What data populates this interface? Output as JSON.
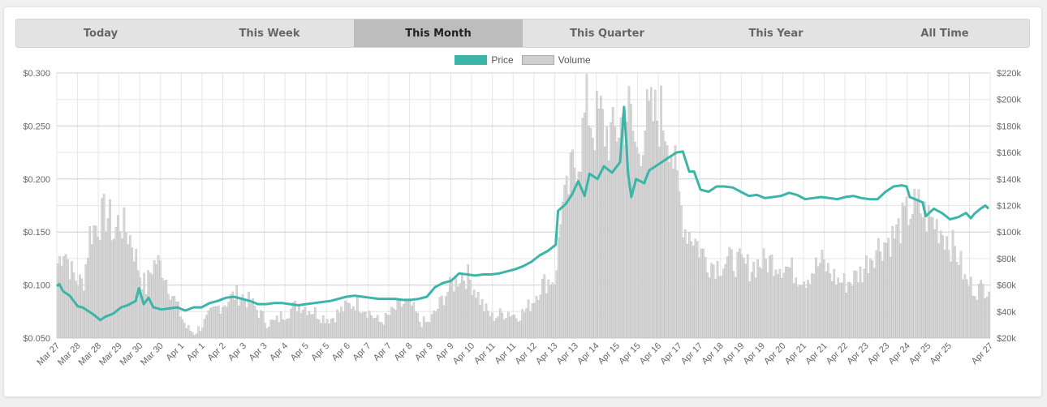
{
  "tabs": [
    {
      "label": "Today",
      "active": false
    },
    {
      "label": "This Week",
      "active": false
    },
    {
      "label": "This Month",
      "active": true
    },
    {
      "label": "This Quarter",
      "active": false
    },
    {
      "label": "This Year",
      "active": false
    },
    {
      "label": "All Time",
      "active": false
    }
  ],
  "legend": {
    "price_label": "Price",
    "volume_label": "Volume"
  },
  "colors": {
    "price": "#3cb5a9",
    "volume_fill": "#d0d0d0",
    "volume_stroke": "#aaaaaa",
    "active_tab": "#bdbdbd",
    "tabs_bg": "#e3e3e3"
  },
  "chart_data": {
    "type": "line",
    "grid": true,
    "legend_position": "top-center",
    "x_labels": [
      "Mar 27",
      "Mar 28",
      "Mar 28",
      "Mar 29",
      "Mar 30",
      "Mar 30",
      "Apr 1",
      "Apr 1",
      "Apr 2",
      "Apr 3",
      "Apr 3",
      "Apr 4",
      "Apr 5",
      "Apr 5",
      "Apr 6",
      "Apr 7",
      "Apr 7",
      "Apr 8",
      "Apr 9",
      "Apr 9",
      "Apr 10",
      "Apr 11",
      "Apr 11",
      "Apr 12",
      "Apr 13",
      "Apr 13",
      "Apr 14",
      "Apr 15",
      "Apr 15",
      "Apr 16",
      "Apr 17",
      "Apr 17",
      "Apr 18",
      "Apr 19",
      "Apr 19",
      "Apr 20",
      "Apr 21",
      "Apr 21",
      "Apr 22",
      "Apr 23",
      "Apr 23",
      "Apr 24",
      "Apr 25",
      "Apr 25",
      "",
      "Apr 27"
    ],
    "y_left": {
      "ticks": [
        "$0.050",
        "$0.100",
        "$0.150",
        "$0.200",
        "$0.250",
        "$0.300"
      ],
      "range": [
        0.05,
        0.3
      ]
    },
    "y_right": {
      "ticks": [
        "$20k",
        "$40k",
        "$60k",
        "$80k",
        "$100k",
        "$120k",
        "$140k",
        "$160k",
        "$180k",
        "$200k",
        "$220k"
      ],
      "range": [
        20000,
        220000
      ]
    },
    "series": [
      {
        "name": "Price",
        "axis": "left",
        "points": [
          [
            0,
            0.099
          ],
          [
            0.15,
            0.101
          ],
          [
            0.4,
            0.094
          ],
          [
            0.8,
            0.09
          ],
          [
            1.0,
            0.086
          ],
          [
            1.3,
            0.08
          ],
          [
            1.6,
            0.079
          ],
          [
            2.0,
            0.075
          ],
          [
            2.3,
            0.072
          ],
          [
            2.7,
            0.067
          ],
          [
            3.0,
            0.07
          ],
          [
            3.5,
            0.073
          ],
          [
            4.0,
            0.079
          ],
          [
            4.4,
            0.081
          ],
          [
            4.9,
            0.085
          ],
          [
            5.1,
            0.097
          ],
          [
            5.4,
            0.082
          ],
          [
            5.7,
            0.088
          ],
          [
            6.0,
            0.079
          ],
          [
            6.5,
            0.077
          ],
          [
            7.0,
            0.078
          ],
          [
            7.5,
            0.079
          ],
          [
            7.8,
            0.077
          ],
          [
            8.0,
            0.076
          ],
          [
            8.5,
            0.079
          ],
          [
            9.0,
            0.079
          ],
          [
            9.5,
            0.083
          ],
          [
            10.0,
            0.085
          ],
          [
            10.5,
            0.088
          ],
          [
            11.0,
            0.089
          ],
          [
            11.5,
            0.087
          ],
          [
            12.0,
            0.085
          ],
          [
            12.5,
            0.082
          ],
          [
            13.0,
            0.082
          ],
          [
            13.5,
            0.083
          ],
          [
            14.0,
            0.083
          ],
          [
            14.5,
            0.082
          ],
          [
            15.0,
            0.081
          ],
          [
            15.5,
            0.082
          ],
          [
            16.0,
            0.083
          ],
          [
            16.5,
            0.084
          ],
          [
            17.0,
            0.085
          ],
          [
            17.5,
            0.087
          ],
          [
            18.0,
            0.089
          ],
          [
            18.5,
            0.09
          ],
          [
            19.0,
            0.089
          ],
          [
            19.5,
            0.088
          ],
          [
            20.0,
            0.087
          ],
          [
            20.5,
            0.087
          ],
          [
            21.0,
            0.087
          ],
          [
            21.5,
            0.086
          ],
          [
            22.0,
            0.086
          ],
          [
            22.5,
            0.087
          ],
          [
            23.0,
            0.089
          ],
          [
            23.5,
            0.098
          ],
          [
            24.0,
            0.102
          ],
          [
            24.5,
            0.104
          ],
          [
            25.0,
            0.111
          ],
          [
            25.5,
            0.11
          ],
          [
            26.0,
            0.109
          ],
          [
            26.5,
            0.11
          ],
          [
            27.0,
            0.11
          ],
          [
            27.5,
            0.111
          ],
          [
            28.0,
            0.113
          ],
          [
            28.5,
            0.115
          ],
          [
            29.0,
            0.118
          ],
          [
            29.5,
            0.122
          ],
          [
            30.0,
            0.128
          ],
          [
            30.5,
            0.132
          ],
          [
            31.0,
            0.138
          ],
          [
            31.15,
            0.17
          ],
          [
            31.6,
            0.176
          ],
          [
            32.0,
            0.185
          ],
          [
            32.4,
            0.198
          ],
          [
            32.8,
            0.184
          ],
          [
            33.1,
            0.205
          ],
          [
            33.6,
            0.2
          ],
          [
            34.0,
            0.212
          ],
          [
            34.5,
            0.206
          ],
          [
            35.0,
            0.216
          ],
          [
            35.25,
            0.268
          ],
          [
            35.5,
            0.205
          ],
          [
            35.7,
            0.183
          ],
          [
            36.0,
            0.2
          ],
          [
            36.5,
            0.196
          ],
          [
            36.8,
            0.208
          ],
          [
            37.0,
            0.21
          ],
          [
            37.5,
            0.215
          ],
          [
            38.0,
            0.22
          ],
          [
            38.5,
            0.225
          ],
          [
            38.9,
            0.226
          ],
          [
            39.3,
            0.207
          ],
          [
            39.6,
            0.207
          ],
          [
            40.0,
            0.19
          ],
          [
            40.5,
            0.188
          ],
          [
            41.0,
            0.193
          ],
          [
            41.5,
            0.193
          ],
          [
            42.0,
            0.192
          ],
          [
            42.5,
            0.188
          ],
          [
            43.0,
            0.184
          ],
          [
            43.5,
            0.185
          ],
          [
            44.0,
            0.182
          ],
          [
            44.5,
            0.183
          ],
          [
            45.0,
            0.184
          ],
          [
            45.5,
            0.187
          ],
          [
            46.0,
            0.185
          ],
          [
            46.5,
            0.181
          ],
          [
            47.0,
            0.182
          ],
          [
            47.5,
            0.183
          ],
          [
            48.0,
            0.182
          ],
          [
            48.5,
            0.181
          ],
          [
            49.0,
            0.183
          ],
          [
            49.5,
            0.184
          ],
          [
            50.0,
            0.182
          ],
          [
            50.5,
            0.181
          ],
          [
            51.0,
            0.181
          ],
          [
            51.5,
            0.188
          ],
          [
            52.0,
            0.193
          ],
          [
            52.5,
            0.194
          ],
          [
            52.8,
            0.193
          ],
          [
            53.0,
            0.183
          ],
          [
            53.5,
            0.18
          ],
          [
            53.8,
            0.178
          ],
          [
            54.0,
            0.165
          ],
          [
            54.5,
            0.172
          ],
          [
            55.0,
            0.168
          ],
          [
            55.5,
            0.162
          ],
          [
            56.0,
            0.164
          ],
          [
            56.5,
            0.168
          ],
          [
            56.8,
            0.163
          ],
          [
            57.0,
            0.167
          ],
          [
            57.4,
            0.172
          ],
          [
            57.7,
            0.175
          ],
          [
            57.9,
            0.172
          ]
        ]
      },
      {
        "name": "Volume",
        "axis": "right",
        "points": [
          [
            0,
            77000
          ],
          [
            0.4,
            90000
          ],
          [
            0.8,
            72000
          ],
          [
            1.2,
            64000
          ],
          [
            1.6,
            62000
          ],
          [
            2.0,
            100000
          ],
          [
            2.5,
            108000
          ],
          [
            2.9,
            114000
          ],
          [
            3.2,
            113000
          ],
          [
            3.5,
            98000
          ],
          [
            3.8,
            110000
          ],
          [
            4.2,
            103000
          ],
          [
            4.6,
            95000
          ],
          [
            5.1,
            70000
          ],
          [
            5.5,
            58000
          ],
          [
            5.8,
            73000
          ],
          [
            6.1,
            79000
          ],
          [
            6.5,
            74000
          ],
          [
            7.0,
            57000
          ],
          [
            7.5,
            42000
          ],
          [
            8.0,
            28000
          ],
          [
            8.5,
            24000
          ],
          [
            9.0,
            30000
          ],
          [
            9.5,
            38000
          ],
          [
            10.0,
            44000
          ],
          [
            10.5,
            48000
          ],
          [
            11.0,
            53000
          ],
          [
            11.5,
            52000
          ],
          [
            12.0,
            47000
          ],
          [
            12.5,
            40000
          ],
          [
            13.0,
            32000
          ],
          [
            13.5,
            32000
          ],
          [
            14.0,
            38000
          ],
          [
            14.5,
            42000
          ],
          [
            15.0,
            46000
          ],
          [
            15.5,
            43000
          ],
          [
            16.0,
            40000
          ],
          [
            16.5,
            36000
          ],
          [
            17.0,
            35000
          ],
          [
            17.5,
            40000
          ],
          [
            18.0,
            44000
          ],
          [
            18.5,
            47000
          ],
          [
            19.0,
            44000
          ],
          [
            19.5,
            38000
          ],
          [
            20.0,
            32000
          ],
          [
            20.5,
            36000
          ],
          [
            21.0,
            42000
          ],
          [
            21.5,
            46000
          ],
          [
            22.0,
            44000
          ],
          [
            22.5,
            33000
          ],
          [
            23.0,
            31000
          ],
          [
            23.5,
            40000
          ],
          [
            24.0,
            52000
          ],
          [
            24.5,
            60000
          ],
          [
            25.0,
            68000
          ],
          [
            25.5,
            67000
          ],
          [
            26.0,
            56000
          ],
          [
            26.5,
            43000
          ],
          [
            27.0,
            36000
          ],
          [
            27.5,
            38000
          ],
          [
            28.0,
            40000
          ],
          [
            28.5,
            37000
          ],
          [
            29.0,
            40000
          ],
          [
            29.5,
            48000
          ],
          [
            30.0,
            60000
          ],
          [
            30.5,
            64000
          ],
          [
            31.0,
            67000
          ],
          [
            31.2,
            115000
          ],
          [
            31.6,
            125000
          ],
          [
            32.0,
            150000
          ],
          [
            32.5,
            165000
          ],
          [
            32.9,
            200000
          ],
          [
            33.3,
            180000
          ],
          [
            33.7,
            190000
          ],
          [
            34.0,
            178000
          ],
          [
            34.5,
            172000
          ],
          [
            35.0,
            185000
          ],
          [
            35.5,
            193000
          ],
          [
            36.0,
            160000
          ],
          [
            36.5,
            185000
          ],
          [
            37.0,
            188000
          ],
          [
            37.5,
            190000
          ],
          [
            38.0,
            178000
          ],
          [
            38.5,
            135000
          ],
          [
            39.0,
            104000
          ],
          [
            39.5,
            98000
          ],
          [
            40.0,
            86000
          ],
          [
            40.5,
            78000
          ],
          [
            41.0,
            76000
          ],
          [
            41.5,
            78000
          ],
          [
            42.0,
            79000
          ],
          [
            42.5,
            76000
          ],
          [
            43.0,
            74000
          ],
          [
            43.5,
            77000
          ],
          [
            44.0,
            78000
          ],
          [
            44.5,
            79000
          ],
          [
            45.0,
            76000
          ],
          [
            45.5,
            73000
          ],
          [
            46.0,
            68000
          ],
          [
            46.5,
            66000
          ],
          [
            47.0,
            73000
          ],
          [
            47.5,
            78000
          ],
          [
            48.0,
            70000
          ],
          [
            48.5,
            64000
          ],
          [
            49.0,
            62000
          ],
          [
            49.5,
            66000
          ],
          [
            50.0,
            71000
          ],
          [
            50.5,
            83000
          ],
          [
            51.0,
            90000
          ],
          [
            51.5,
            94000
          ],
          [
            52.0,
            98000
          ],
          [
            52.5,
            108000
          ],
          [
            53.0,
            118000
          ],
          [
            53.5,
            120000
          ],
          [
            54.0,
            112000
          ],
          [
            54.5,
            108000
          ],
          [
            55.0,
            102000
          ],
          [
            55.5,
            92000
          ],
          [
            56.0,
            82000
          ],
          [
            56.4,
            63000
          ],
          [
            56.8,
            60000
          ],
          [
            57.2,
            57000
          ],
          [
            57.6,
            59000
          ],
          [
            57.95,
            62000
          ]
        ]
      }
    ]
  }
}
